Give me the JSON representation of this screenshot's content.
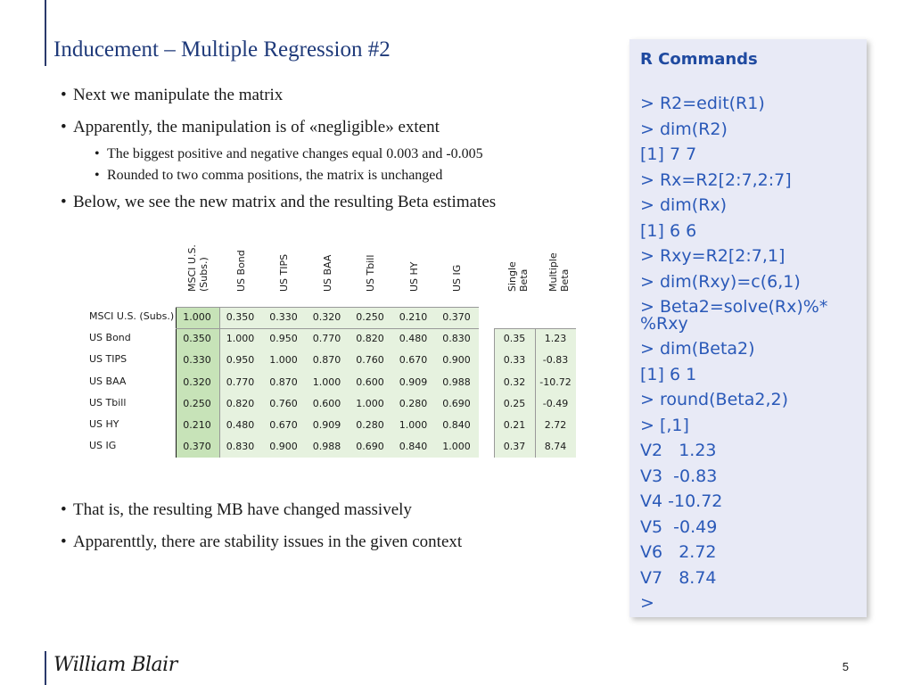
{
  "title": "Inducement – Multiple Regression #2",
  "bullets_top": [
    {
      "text": "Next we manipulate the matrix",
      "sub": []
    },
    {
      "text": "Apparently, the manipulation is of «negligible» extent",
      "sub": [
        "The biggest positive and negative changes equal 0.003 and -0.005",
        "Rounded to two comma positions, the matrix is unchanged"
      ]
    },
    {
      "text": "Below, we see the new matrix and the resulting Beta estimates",
      "sub": []
    }
  ],
  "table": {
    "col_headers": [
      "MSCI U.S. (Subs.)",
      "US Bond",
      "US TIPS",
      "US BAA",
      "US Tbill",
      "US HY",
      "US IG"
    ],
    "col_headers_lines": [
      [
        "MSCI U.S.",
        "(Subs.)"
      ],
      [
        "US Bond"
      ],
      [
        "US TIPS"
      ],
      [
        "US BAA"
      ],
      [
        "US Tbill"
      ],
      [
        "US HY"
      ],
      [
        "US IG"
      ]
    ],
    "beta_headers_lines": [
      [
        "Single",
        "Beta"
      ],
      [
        "Multiple",
        "Beta"
      ]
    ],
    "row_labels": [
      "MSCI U.S. (Subs.)",
      "US Bond",
      "US TIPS",
      "US BAA",
      "US Tbill",
      "US HY",
      "US IG"
    ],
    "matrix": [
      [
        "1.000",
        "0.350",
        "0.330",
        "0.320",
        "0.250",
        "0.210",
        "0.370"
      ],
      [
        "0.350",
        "1.000",
        "0.950",
        "0.770",
        "0.820",
        "0.480",
        "0.830"
      ],
      [
        "0.330",
        "0.950",
        "1.000",
        "0.870",
        "0.760",
        "0.670",
        "0.900"
      ],
      [
        "0.320",
        "0.770",
        "0.870",
        "1.000",
        "0.600",
        "0.909",
        "0.988"
      ],
      [
        "0.250",
        "0.820",
        "0.760",
        "0.600",
        "1.000",
        "0.280",
        "0.690"
      ],
      [
        "0.210",
        "0.480",
        "0.670",
        "0.909",
        "0.280",
        "1.000",
        "0.840"
      ],
      [
        "0.370",
        "0.830",
        "0.900",
        "0.988",
        "0.690",
        "0.840",
        "1.000"
      ]
    ],
    "single_beta": [
      "",
      "0.35",
      "0.33",
      "0.32",
      "0.25",
      "0.21",
      "0.37"
    ],
    "multiple_beta": [
      "",
      "1.23",
      "-0.83",
      "-10.72",
      "-0.49",
      "2.72",
      "8.74"
    ]
  },
  "bullets_bottom": [
    "That is, the resulting MB have changed massively",
    "Apparenttly, there are stability issues in the given context"
  ],
  "r_panel": {
    "heading": "R Commands",
    "lines": [
      "> R2=edit(R1)",
      "> dim(R2)",
      "[1] 7 7",
      "> Rx=R2[2:7,2:7]",
      "> dim(Rx)",
      "[1] 6 6",
      "> Rxy=R2[2:7,1]",
      "> dim(Rxy)=c(6,1)",
      "> Beta2=solve(Rx)%*",
      "%Rxy",
      "> dim(Beta2)",
      "[1] 6 1",
      "> round(Beta2,2)",
      "> [,1]",
      "V2   1.23",
      "V3  -0.83",
      "V4 -10.72",
      "V5  -0.49",
      "V6   2.72",
      "V7   8.74",
      ">"
    ]
  },
  "footer": {
    "logo": "William Blair",
    "page_number": "5"
  },
  "colors": {
    "title": "#1f3a7a",
    "r_text": "#2a59b8",
    "panel_bg": "#e8eaf6",
    "cell_green": "#e6f2df",
    "cell_green_dark": "#c7e3b8"
  }
}
